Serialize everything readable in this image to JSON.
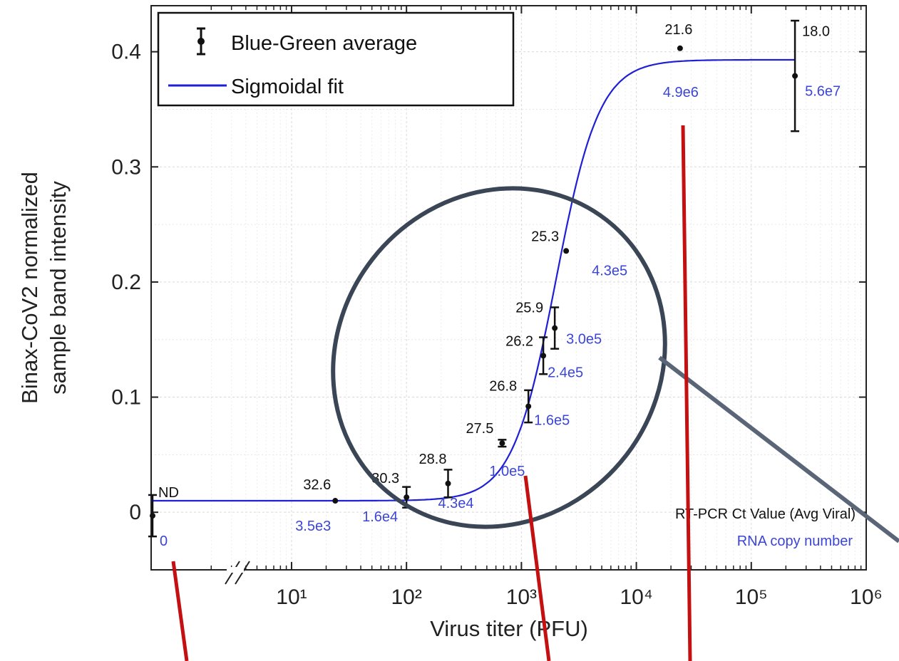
{
  "chart_data": {
    "type": "scatter",
    "xlabel": "Virus titer (PFU)",
    "ylabel": "Binax-CoV2 normalized sample band intensity",
    "x_scale": "log",
    "xlim": [
      0.6,
      1000000
    ],
    "ylim": [
      -0.05,
      0.44
    ],
    "y_ticks": [
      "0",
      "0.1",
      "0.2",
      "0.3",
      "0.4"
    ],
    "x_ticks": [
      "10¹",
      "10²",
      "10³",
      "10⁴",
      "10⁵",
      "10⁶"
    ],
    "grid": true,
    "axis_break": "//",
    "legend": {
      "position": "top-left",
      "entries": [
        "Blue-Green average",
        "Sigmoidal fit"
      ]
    },
    "series": [
      {
        "name": "Blue-Green average",
        "points": [
          {
            "x": 0,
            "y": -0.003,
            "err": 0.018,
            "ct": "ND",
            "copies": "0"
          },
          {
            "x": 24,
            "y": 0.01,
            "err": 0.0,
            "ct": "32.6",
            "copies": "3.5e3"
          },
          {
            "x": 100,
            "y": 0.013,
            "err": 0.009,
            "ct": "30.3",
            "copies": "1.6e4"
          },
          {
            "x": 230,
            "y": 0.025,
            "err": 0.012,
            "ct": "28.8",
            "copies": "4.3e4"
          },
          {
            "x": 680,
            "y": 0.06,
            "err": 0.003,
            "ct": "27.5",
            "copies": "1.0e5"
          },
          {
            "x": 1150,
            "y": 0.092,
            "err": 0.014,
            "ct": "26.8",
            "copies": "1.6e5"
          },
          {
            "x": 1550,
            "y": 0.136,
            "err": 0.016,
            "ct": "26.2",
            "copies": "2.4e5"
          },
          {
            "x": 1950,
            "y": 0.16,
            "err": 0.018,
            "ct": "25.9",
            "copies": "3.0e5"
          },
          {
            "x": 2450,
            "y": 0.227,
            "err": 0.0,
            "ct": "25.3",
            "copies": "4.3e5"
          },
          {
            "x": 24000,
            "y": 0.403,
            "err": 0.0,
            "ct": "21.6",
            "copies": "4.9e6"
          },
          {
            "x": 240000,
            "y": 0.379,
            "err": 0.048,
            "ct": "18.0",
            "copies": "5.6e7"
          }
        ]
      },
      {
        "name": "Sigmoidal fit",
        "model": {
          "bottom": 0.01,
          "top": 0.393,
          "log10_x50": 3.3,
          "hill": 2.3
        },
        "color": "#1f1fd6"
      }
    ],
    "annotations": {
      "ct_heading": "RT-PCR Ct Value (Avg Viral)",
      "rna_heading": "RNA copy number"
    },
    "colors": {
      "fit_line": "#1f1fd6",
      "rna_label": "#3b45d6",
      "ellipse": "#3a4556",
      "red_pointer": "#c41010",
      "gray_pointer": "#5a6678"
    }
  }
}
